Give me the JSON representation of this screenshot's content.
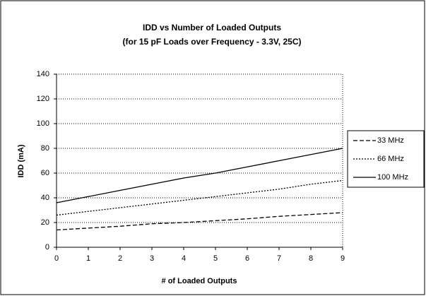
{
  "chart_data": {
    "type": "line",
    "title": "IDD vs Number of Loaded Outputs",
    "subtitle": "(for 15 pF Loads over Frequency - 3.3V, 25C)",
    "x_label": "# of Loaded Outputs",
    "y_label": "IDD (mA)",
    "x": [
      0,
      1,
      2,
      3,
      4,
      5,
      6,
      7,
      8,
      9
    ],
    "xlim": [
      0,
      9
    ],
    "xticks": [
      0,
      1,
      2,
      3,
      4,
      5,
      6,
      7,
      8,
      9
    ],
    "ylim": [
      0,
      140
    ],
    "yticks": [
      0,
      20,
      40,
      60,
      80,
      100,
      120,
      140
    ],
    "grid": true,
    "legend": "right",
    "series": [
      {
        "name": "33 MHz",
        "color": "#000000",
        "line_style": "dashed",
        "values": [
          14,
          15.5,
          17,
          19,
          20,
          21.5,
          23,
          25,
          26.5,
          28
        ]
      },
      {
        "name": "66 MHz",
        "color": "#000000",
        "line_style": "dotted",
        "values": [
          26,
          29,
          32,
          35,
          38,
          41,
          44,
          47,
          51,
          54
        ]
      },
      {
        "name": "100 MHz",
        "color": "#000000",
        "line_style": "solid",
        "values": [
          36,
          41,
          46,
          51,
          56,
          60,
          65,
          70,
          75,
          80
        ]
      }
    ]
  }
}
